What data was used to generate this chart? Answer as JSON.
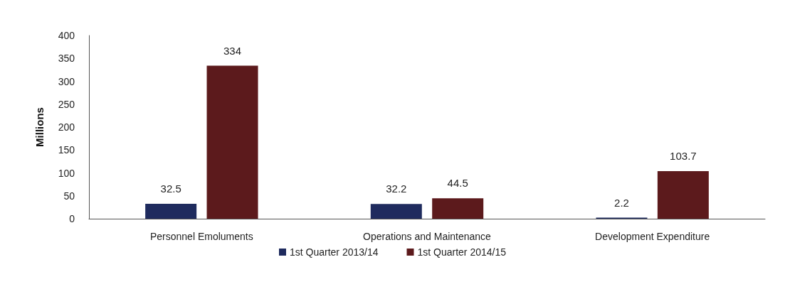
{
  "chart_data": {
    "type": "bar",
    "ylabel": "Millions",
    "categories": [
      "Personnel Emoluments",
      "Operations and Maintenance",
      "Development Expenditure"
    ],
    "series": [
      {
        "name": "1st Quarter 2013/14",
        "color": "#1f2b5e",
        "values": [
          32.5,
          32.2,
          2.2
        ]
      },
      {
        "name": "1st Quarter 2014/15",
        "color": "#5c1a1c",
        "values": [
          334,
          44.5,
          103.7
        ]
      }
    ],
    "ylim": [
      0,
      400
    ],
    "yticks": [
      0,
      50,
      100,
      150,
      200,
      250,
      300,
      350,
      400
    ],
    "grid": false,
    "legend": "bottom",
    "data_labels": true
  }
}
